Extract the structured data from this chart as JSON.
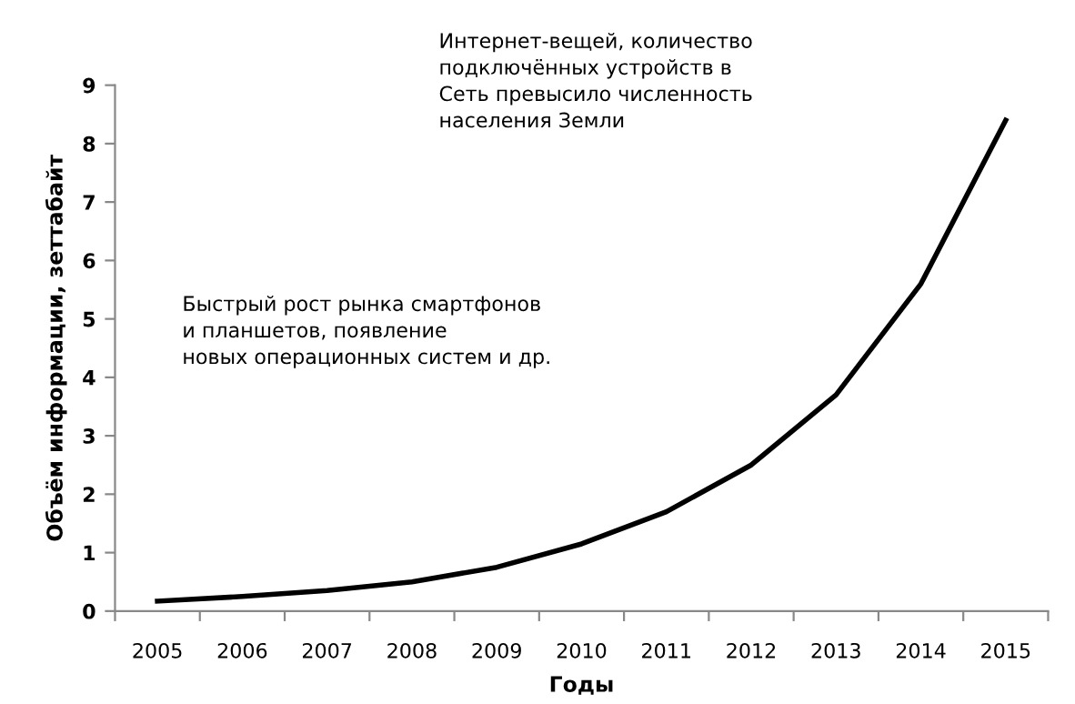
{
  "chart_data": {
    "type": "line",
    "xlabel": "Годы",
    "ylabel": "Объём информации, зеттабайт",
    "categories": [
      "2005",
      "2006",
      "2007",
      "2008",
      "2009",
      "2010",
      "2011",
      "2012",
      "2013",
      "2014",
      "2015"
    ],
    "series": [
      {
        "color": "#000000",
        "values": [
          0.17,
          0.25,
          0.35,
          0.5,
          0.75,
          1.15,
          1.7,
          2.5,
          3.7,
          5.6,
          8.4
        ]
      }
    ],
    "ylim": [
      0,
      9
    ],
    "yticks": [
      0,
      1,
      2,
      3,
      4,
      5,
      6,
      7,
      8,
      9
    ],
    "annotations": [
      "Быстрый рост рынка смартфонов\nи планшетов, появление\nновых операционных систем и др.",
      "Интернет-вещей, количество\nподключённых устройств в\nСеть превысило численность\nнаселения Земли"
    ]
  }
}
